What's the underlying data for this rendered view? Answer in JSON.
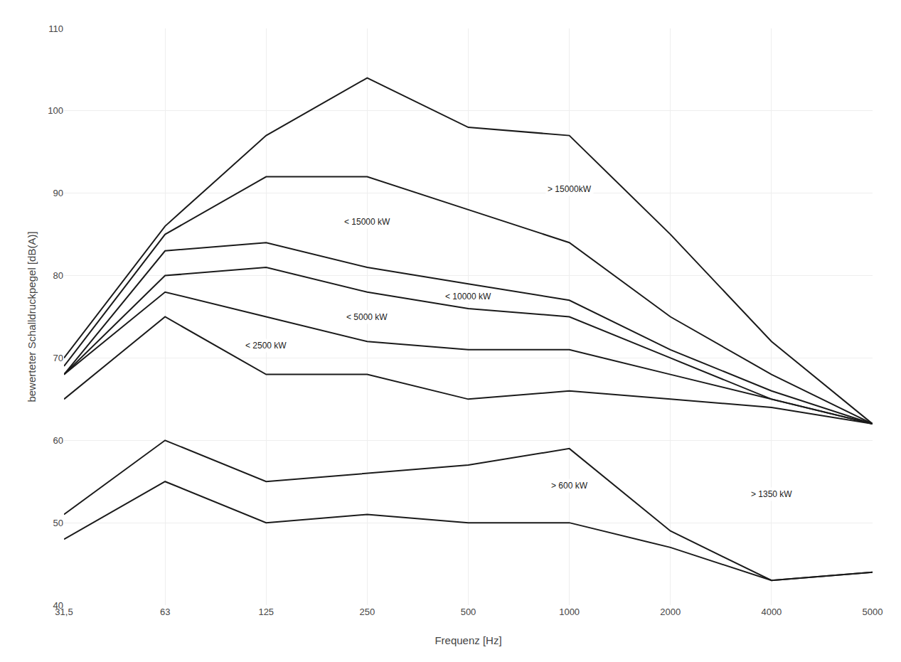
{
  "chart_data": {
    "type": "line",
    "x_label": "Frequenz [Hz]",
    "y_label": "bewerteter Schalldruckpegel [dB(A)]",
    "categories": [
      "31,5",
      "63",
      "125",
      "250",
      "500",
      "1000",
      "2000",
      "4000",
      "5000"
    ],
    "color": "#1a1a1a",
    "series": [
      {
        "name": "> 15000kW",
        "values": [
          70,
          86,
          97,
          104,
          98,
          97,
          85,
          72,
          62
        ]
      },
      {
        "name": "< 15000 kW",
        "values": [
          69,
          85,
          92,
          92,
          88,
          84,
          75,
          68,
          62
        ]
      },
      {
        "name": "< 10000 kW",
        "values": [
          68,
          83,
          84,
          81,
          79,
          77,
          71,
          66,
          62
        ]
      },
      {
        "name": "< 5000 kW",
        "values": [
          68,
          80,
          81,
          78,
          76,
          75,
          70,
          65,
          62
        ]
      },
      {
        "name": "< 2500 kW",
        "values": [
          68,
          78,
          75,
          72,
          71,
          71,
          68,
          65,
          62
        ]
      },
      {
        "name": "> 1350 kW",
        "values": [
          65,
          75,
          68,
          68,
          65,
          66,
          65,
          64,
          62
        ]
      },
      {
        "name": "> 600 kW",
        "values": [
          51,
          60,
          55,
          56,
          57,
          59,
          49,
          43,
          44
        ]
      },
      {
        "name": null,
        "values": [
          48,
          55,
          50,
          51,
          50,
          50,
          47,
          43,
          44
        ]
      }
    ],
    "ylim": [
      40,
      110
    ],
    "yticks": [
      40,
      50,
      60,
      70,
      80,
      90,
      100,
      110
    ],
    "grid": true
  }
}
